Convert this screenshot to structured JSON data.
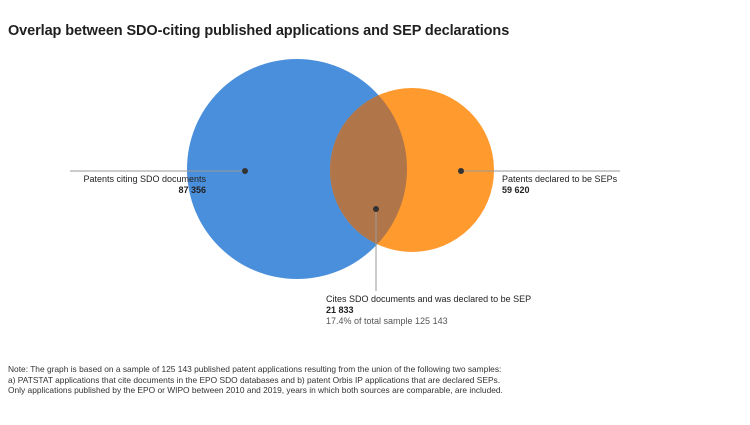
{
  "chart_data": {
    "type": "venn",
    "title": "Overlap between SDO-citing published applications and SEP declarations",
    "sets": [
      {
        "key": "sdo",
        "label": "Patents citing SDO documents",
        "value": "87 356",
        "count": 87356,
        "color": "#4a8fdb"
      },
      {
        "key": "sep",
        "label": "Patents declared to be SEPs",
        "value": "59 620",
        "count": 59620,
        "color": "#ff9a2e"
      }
    ],
    "intersection": {
      "label": "Cites SDO documents and was declared to be SEP",
      "value": "21 833",
      "count": 21833,
      "share_text": "17.4% of total sample 125 143",
      "color": "#b0764a"
    },
    "total": 125143
  },
  "note": {
    "lines": [
      "Note: The graph is based on a sample of 125 143 published patent applications resulting from the union of the following two samples:",
      "a) PATSTAT applications that cite documents in the EPO SDO databases and b) patent Orbis IP applications that are declared SEPs.",
      "Only applications published by the EPO or WIPO between 2010 and 2019, years in which both sources are comparable, are included."
    ]
  }
}
